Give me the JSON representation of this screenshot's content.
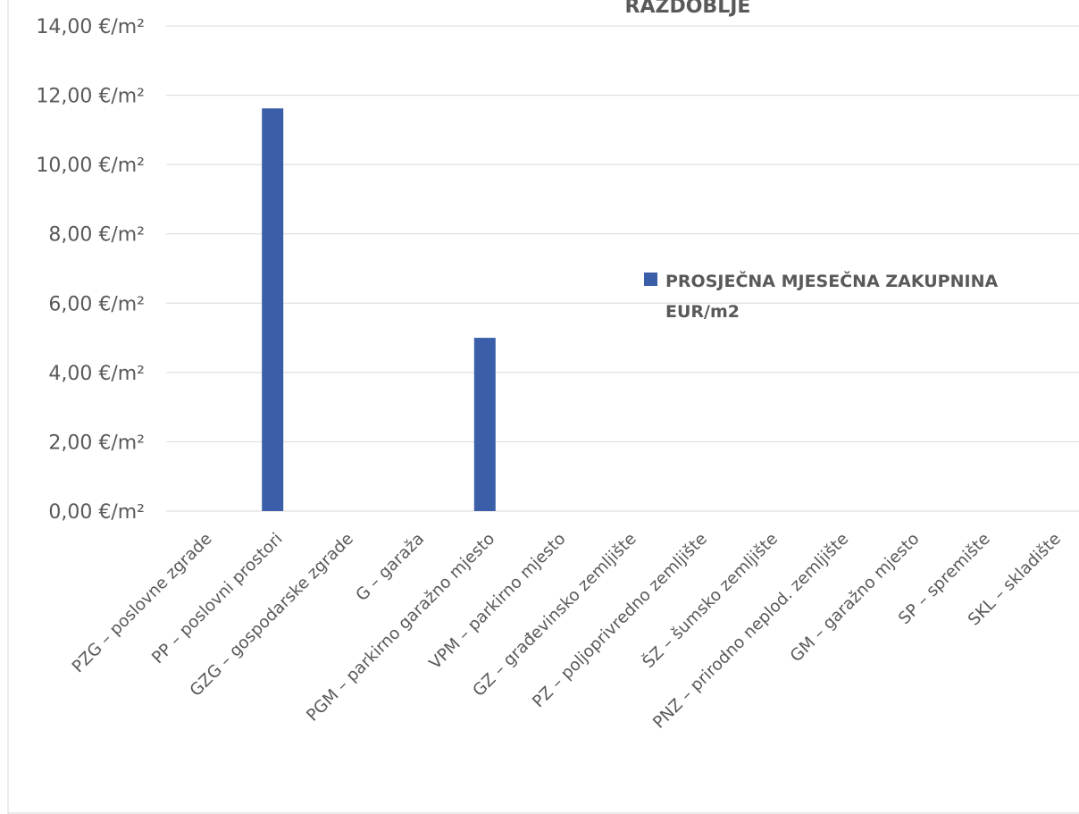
{
  "chart_data": {
    "type": "bar",
    "title": "RAZDOBLJE",
    "categories": [
      "PZG – poslovne zgrade",
      "PP – poslovni prostori",
      "GZG – gospodarske zgrade",
      "G – garaža",
      "PGM – parkirno garažno mjesto",
      "VPM – parkirno mjesto",
      "GZ – građevinsko zemljište",
      "PZ – poljoprivredno zemljište",
      "ŠZ – šumsko zemljište",
      "PNZ – prirodno neplod. zemljište",
      "GM – garažno mjesto",
      "SP – spremište",
      "SKL – skladište"
    ],
    "series": [
      {
        "name": "PROSJEČNA MJESEČNA ZAKUPNINA EUR/m2",
        "legend_lines": [
          "PROSJEČNA MJESEČNA ZAKUPNINA",
          "EUR/m2"
        ],
        "color": "#3a5fa8",
        "values": [
          0,
          11.62,
          0,
          0,
          5.0,
          0,
          0,
          0,
          0,
          0,
          0,
          0,
          0
        ]
      }
    ],
    "y_ticks": [
      "0,00 €/m²",
      "2,00 €/m²",
      "4,00 €/m²",
      "6,00 €/m²",
      "8,00 €/m²",
      "10,00 €/m²",
      "12,00 €/m²",
      "14,00 €/m²"
    ],
    "y_tick_values": [
      0,
      2,
      4,
      6,
      8,
      10,
      12,
      14
    ],
    "ylim": [
      0,
      14
    ],
    "xlabel": "",
    "ylabel": "",
    "grid": true,
    "legend_position": "right"
  }
}
